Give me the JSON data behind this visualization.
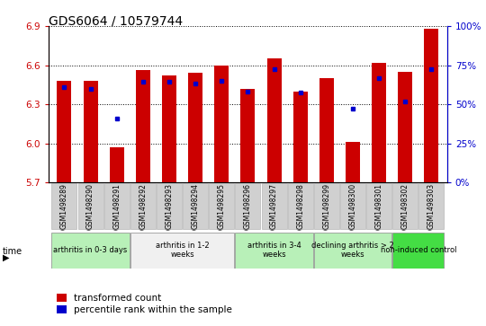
{
  "title": "GDS6064 / 10579744",
  "samples": [
    "GSM1498289",
    "GSM1498290",
    "GSM1498291",
    "GSM1498292",
    "GSM1498293",
    "GSM1498294",
    "GSM1498295",
    "GSM1498296",
    "GSM1498297",
    "GSM1498298",
    "GSM1498299",
    "GSM1498300",
    "GSM1498301",
    "GSM1498302",
    "GSM1498303"
  ],
  "red_values": [
    6.48,
    6.48,
    5.97,
    6.56,
    6.52,
    6.54,
    6.6,
    6.42,
    6.65,
    6.4,
    6.5,
    6.01,
    6.62,
    6.55,
    6.88
  ],
  "blue_values": [
    6.43,
    6.42,
    6.19,
    6.47,
    6.47,
    6.46,
    6.48,
    6.4,
    6.57,
    6.39,
    null,
    6.27,
    6.5,
    6.32,
    6.57
  ],
  "y_min": 5.7,
  "y_max": 6.9,
  "y_ticks_left": [
    5.7,
    6.0,
    6.3,
    6.6,
    6.9
  ],
  "y_ticks_right": [
    0,
    25,
    50,
    75,
    100
  ],
  "bar_color": "#cc0000",
  "dot_color": "#0000cc",
  "bar_bottom": 5.7,
  "groups": [
    {
      "label": "arthritis in 0-3 days",
      "indices": [
        0,
        1,
        2
      ],
      "color": "#b8f0b8"
    },
    {
      "label": "arthritis in 1-2\nweeks",
      "indices": [
        3,
        4,
        5,
        6
      ],
      "color": "#f0f0f0"
    },
    {
      "label": "arthritis in 3-4\nweeks",
      "indices": [
        7,
        8,
        9
      ],
      "color": "#b8f0b8"
    },
    {
      "label": "declining arthritis > 2\nweeks",
      "indices": [
        10,
        11,
        12
      ],
      "color": "#b8f0b8"
    },
    {
      "label": "non-induced control",
      "indices": [
        13,
        14
      ],
      "color": "#44dd44"
    }
  ],
  "legend_red": "transformed count",
  "legend_blue": "percentile rank within the sample",
  "title_fontsize": 10,
  "axis_color_left": "#cc0000",
  "axis_color_right": "#0000cc",
  "tick_label_bg": "#d0d0d0"
}
